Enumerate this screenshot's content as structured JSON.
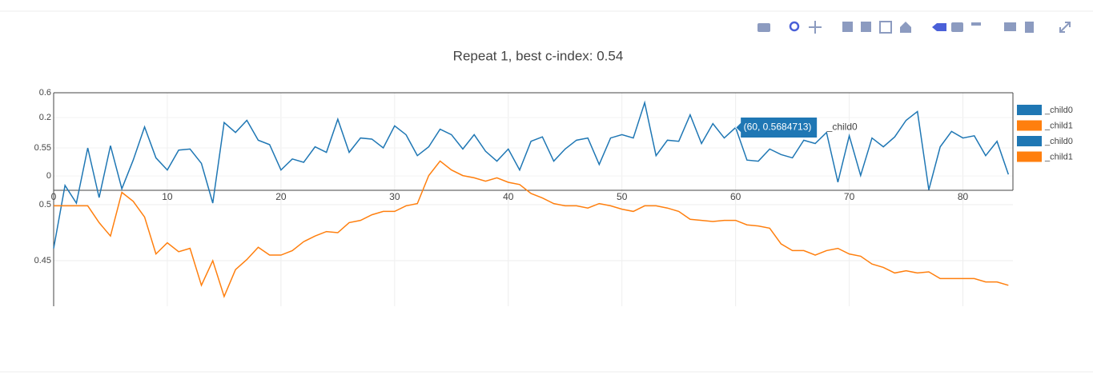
{
  "chart_data": {
    "type": "line",
    "title": "Repeat 1, best c-index: 0.54",
    "x": [
      0,
      1,
      2,
      3,
      4,
      5,
      6,
      7,
      8,
      9,
      10,
      11,
      12,
      13,
      14,
      15,
      16,
      17,
      18,
      19,
      20,
      21,
      22,
      23,
      24,
      25,
      26,
      27,
      28,
      29,
      30,
      31,
      32,
      33,
      34,
      35,
      36,
      37,
      38,
      39,
      40,
      41,
      42,
      43,
      44,
      45,
      46,
      47,
      48,
      49,
      50,
      51,
      52,
      53,
      54,
      55,
      56,
      57,
      58,
      59,
      60,
      61,
      62,
      63,
      64,
      65,
      66,
      67,
      68,
      69,
      70,
      71,
      72,
      73,
      74,
      75,
      76,
      77,
      78,
      79,
      80,
      81,
      82,
      83,
      84
    ],
    "xlim": [
      0,
      84.4
    ],
    "xticks": [
      0,
      10,
      20,
      30,
      40,
      50,
      60,
      70,
      80
    ],
    "ylim": [
      0.5116,
      0.6
    ],
    "yticks": [
      0.55,
      0.6
    ],
    "y2lim": [
      0.4093,
      0.6
    ],
    "y2ticks": [
      0.45,
      0.5
    ],
    "y3lim": [
      -0.049,
      0.285
    ],
    "y3ticks": [
      0,
      0.2
    ],
    "grid": true,
    "series": [
      {
        "name": "_child0",
        "color": "#1f77b4",
        "values": [
          0.459,
          0.516,
          0.5,
          0.55,
          0.505,
          0.552,
          0.513,
          0.539,
          0.569,
          0.541,
          0.53,
          0.548,
          0.549,
          0.536,
          0.5,
          0.573,
          0.564,
          0.575,
          0.557,
          0.553,
          0.53,
          0.54,
          0.537,
          0.551,
          0.546,
          0.576,
          0.546,
          0.559,
          0.558,
          0.55,
          0.57,
          0.562,
          0.543,
          0.551,
          0.567,
          0.562,
          0.549,
          0.562,
          0.547,
          0.538,
          0.549,
          0.53,
          0.556,
          0.56,
          0.538,
          0.549,
          0.557,
          0.559,
          0.535,
          0.559,
          0.562,
          0.559,
          0.591,
          0.543,
          0.557,
          0.556,
          0.58,
          0.554,
          0.572,
          0.559,
          0.5684713,
          0.539,
          0.538,
          0.549,
          0.544,
          0.541,
          0.557,
          0.554,
          0.564,
          0.519,
          0.561,
          0.525,
          0.559,
          0.551,
          0.56,
          0.575,
          0.583,
          0.512,
          0.551,
          0.565,
          0.559,
          0.561,
          0.543,
          0.556,
          0.526
        ]
      },
      {
        "name": "_child1",
        "color": "#ff7f0e",
        "axis": "y2",
        "values": [
          0.499,
          0.499,
          0.499,
          0.499,
          0.484,
          0.472,
          0.511,
          0.503,
          0.489,
          0.456,
          0.466,
          0.458,
          0.461,
          0.428,
          0.45,
          0.418,
          0.442,
          0.451,
          0.462,
          0.455,
          0.455,
          0.459,
          0.467,
          0.472,
          0.476,
          0.475,
          0.484,
          0.486,
          0.491,
          0.494,
          0.494,
          0.499,
          0.501,
          0.526,
          0.539,
          0.531,
          0.526,
          0.524,
          0.521,
          0.524,
          0.52,
          0.518,
          0.51,
          0.506,
          0.501,
          0.499,
          0.499,
          0.497,
          0.501,
          0.499,
          0.496,
          0.494,
          0.499,
          0.499,
          0.497,
          0.494,
          0.487,
          0.486,
          0.485,
          0.486,
          0.486,
          0.482,
          0.481,
          0.479,
          0.465,
          0.459,
          0.459,
          0.455,
          0.459,
          0.461,
          0.456,
          0.454,
          0.447,
          0.444,
          0.439,
          0.441,
          0.439,
          0.44,
          0.434,
          0.434,
          0.434,
          0.434,
          0.431,
          0.431,
          0.428
        ]
      }
    ],
    "legend": [
      {
        "name": "_child0",
        "color": "#1f77b4"
      },
      {
        "name": "_child1",
        "color": "#ff7f0e"
      },
      {
        "name": "_child0",
        "color": "#1f77b4"
      },
      {
        "name": "_child1",
        "color": "#ff7f0e"
      }
    ],
    "hover": {
      "text": "(60, 0.5684713)",
      "name": "_child0",
      "x": 60,
      "series": 0
    }
  }
}
